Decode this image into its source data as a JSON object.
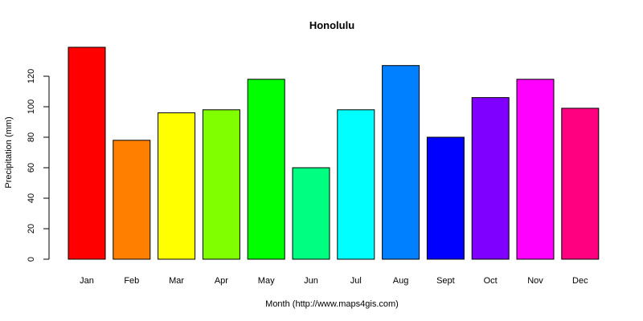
{
  "chart_data": {
    "type": "bar",
    "title": "Honolulu",
    "xlabel": "Month (http://www.maps4gis.com)",
    "ylabel": "Precipitation (mm)",
    "categories": [
      "Jan",
      "Feb",
      "Mar",
      "Apr",
      "May",
      "Jun",
      "Jul",
      "Aug",
      "Sept",
      "Oct",
      "Nov",
      "Dec"
    ],
    "values": [
      139,
      78,
      96,
      98,
      118,
      60,
      98,
      127,
      80,
      106,
      118,
      99
    ],
    "colors": [
      "#FF0000",
      "#FF8000",
      "#FFFF00",
      "#80FF00",
      "#00FF00",
      "#00FF80",
      "#00FFFF",
      "#0080FF",
      "#0000FF",
      "#8000FF",
      "#FF00FF",
      "#FF0080"
    ],
    "yticks": [
      "0",
      "20",
      "40",
      "60",
      "80",
      "100",
      "120"
    ],
    "ylim": [
      0,
      140
    ],
    "grid": false,
    "legend": false
  }
}
